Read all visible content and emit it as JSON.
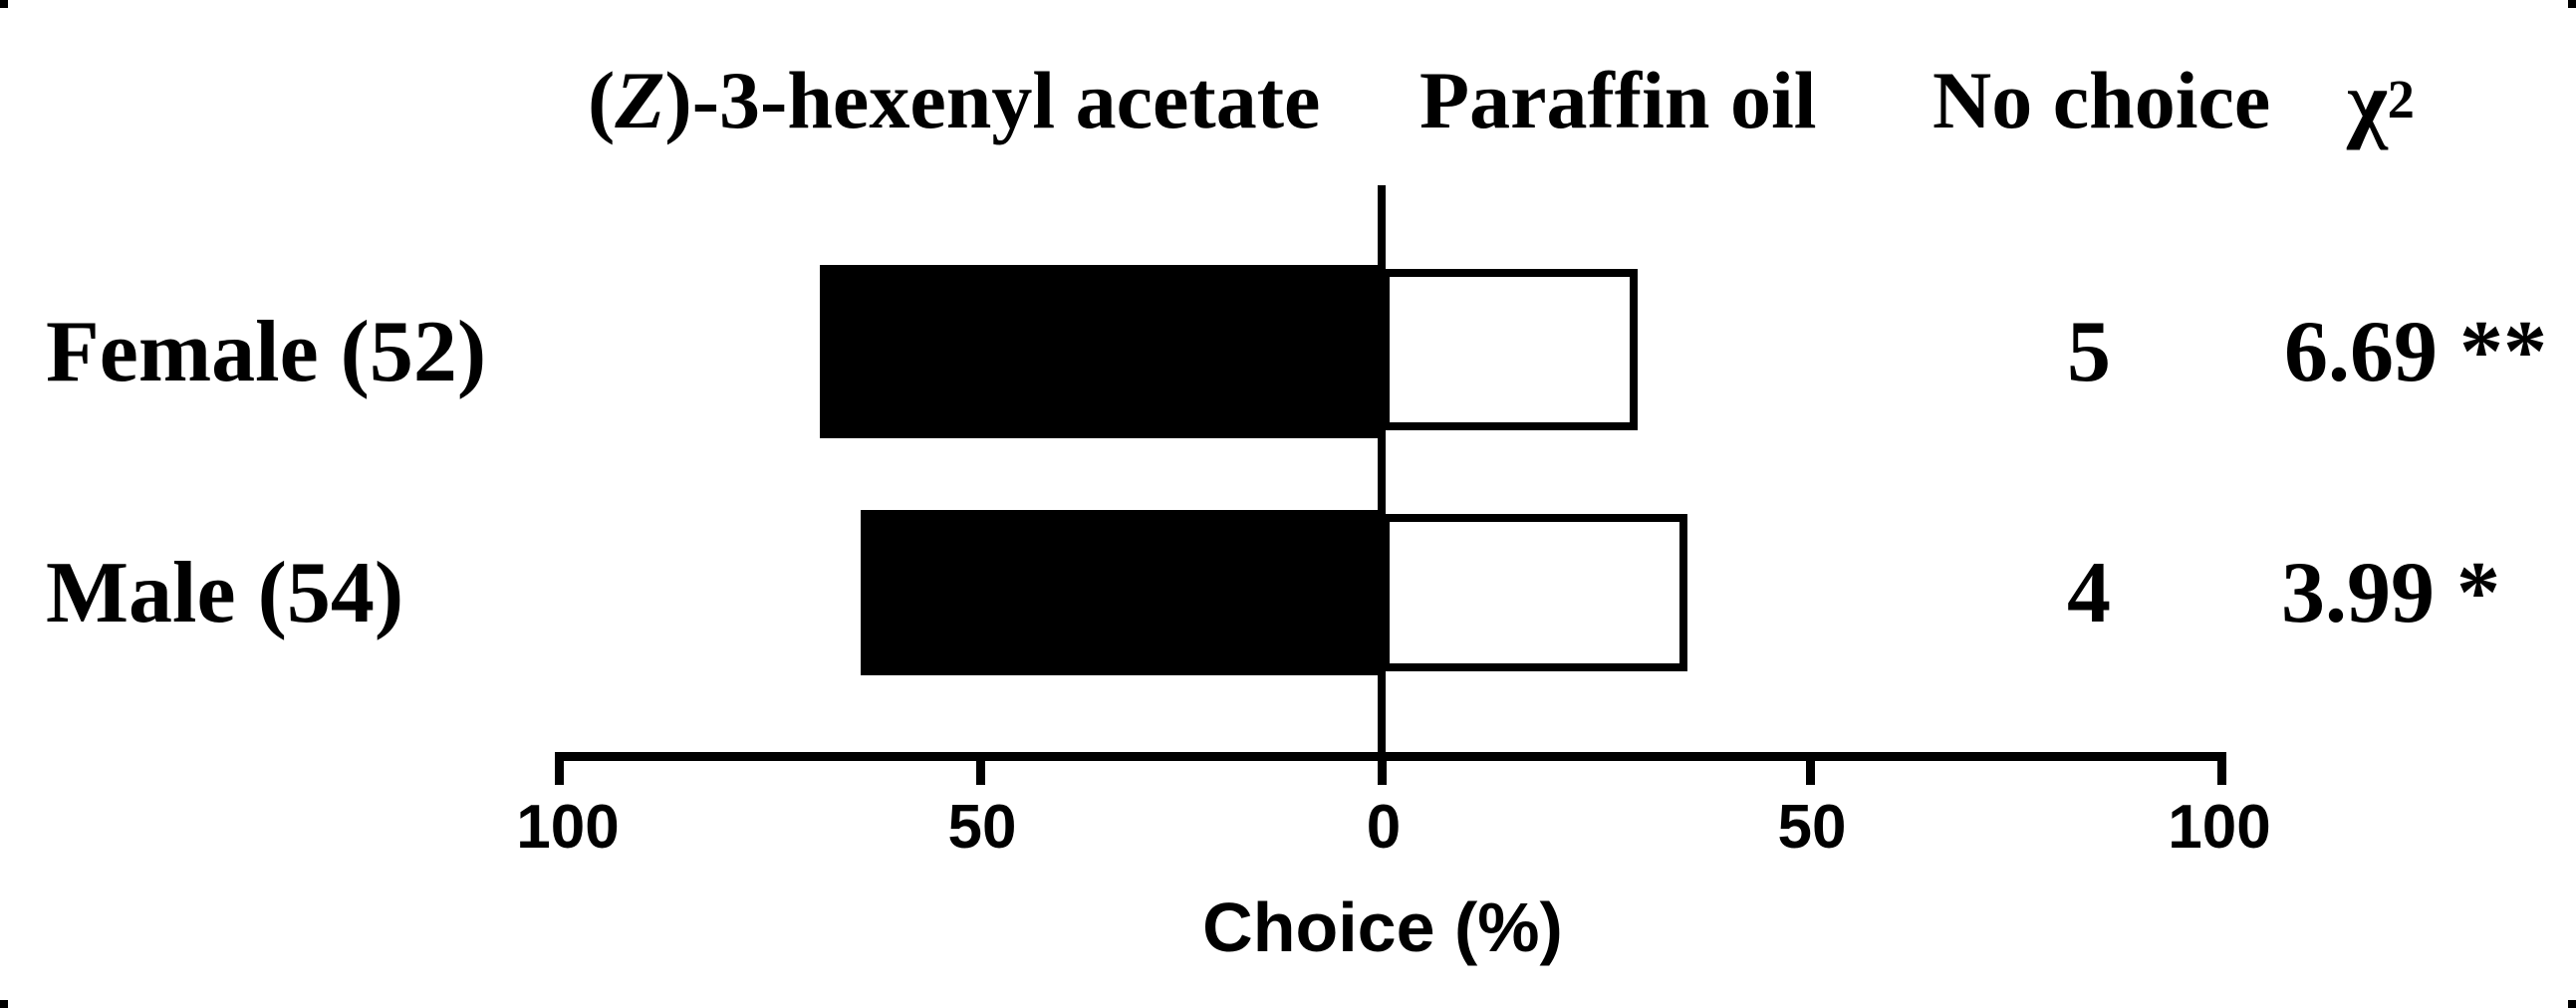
{
  "figure": {
    "header": {
      "treatment_left": {
        "pre": "(",
        "italic": "Z",
        "post": ")-3-hexenyl acetate"
      },
      "treatment_right": "Paraffin oil",
      "no_choice": "No choice",
      "chi": {
        "base": "χ",
        "sup": "2"
      }
    },
    "rows": [
      {
        "label": "Female (52)",
        "no_choice": "5",
        "chi_square": "6.69 **"
      },
      {
        "label": "Male (54)",
        "no_choice": "4",
        "chi_square": "3.99 *"
      }
    ],
    "axis": {
      "tick_labels": [
        "100",
        "50",
        "0",
        "50",
        "100"
      ],
      "title": "Choice (%)"
    }
  },
  "chart_data": {
    "type": "bar",
    "subtype": "horizontal-diverging-two-choice",
    "title": "",
    "xlabel": "Choice (%)",
    "axis": {
      "ticks": [
        100,
        50,
        0,
        50,
        100
      ],
      "left_max": 100,
      "right_max": 100,
      "zero_center": true,
      "grid": false
    },
    "column_headers": [
      "(Z)-3-hexenyl acetate",
      "Paraffin oil",
      "No choice",
      "χ²"
    ],
    "series_legend": {
      "filled_black_bar": "(Z)-3-hexenyl acetate (left of zero)",
      "open_white_bar": "Paraffin oil (right of zero)"
    },
    "rows": [
      {
        "label": "Female (52)",
        "n": 52,
        "hexenyl_acetate_pct": 68,
        "paraffin_oil_pct": 31,
        "no_choice": 5,
        "chi_square": 6.69,
        "significance": "**"
      },
      {
        "label": "Male (54)",
        "n": 54,
        "hexenyl_acetate_pct": 63,
        "paraffin_oil_pct": 37,
        "no_choice": 4,
        "chi_square": 3.99,
        "significance": "*"
      }
    ]
  },
  "colors": {
    "bar_fill": "#000000",
    "bar_open_fill": "#ffffff",
    "text": "#000000",
    "background": "#ffffff"
  }
}
